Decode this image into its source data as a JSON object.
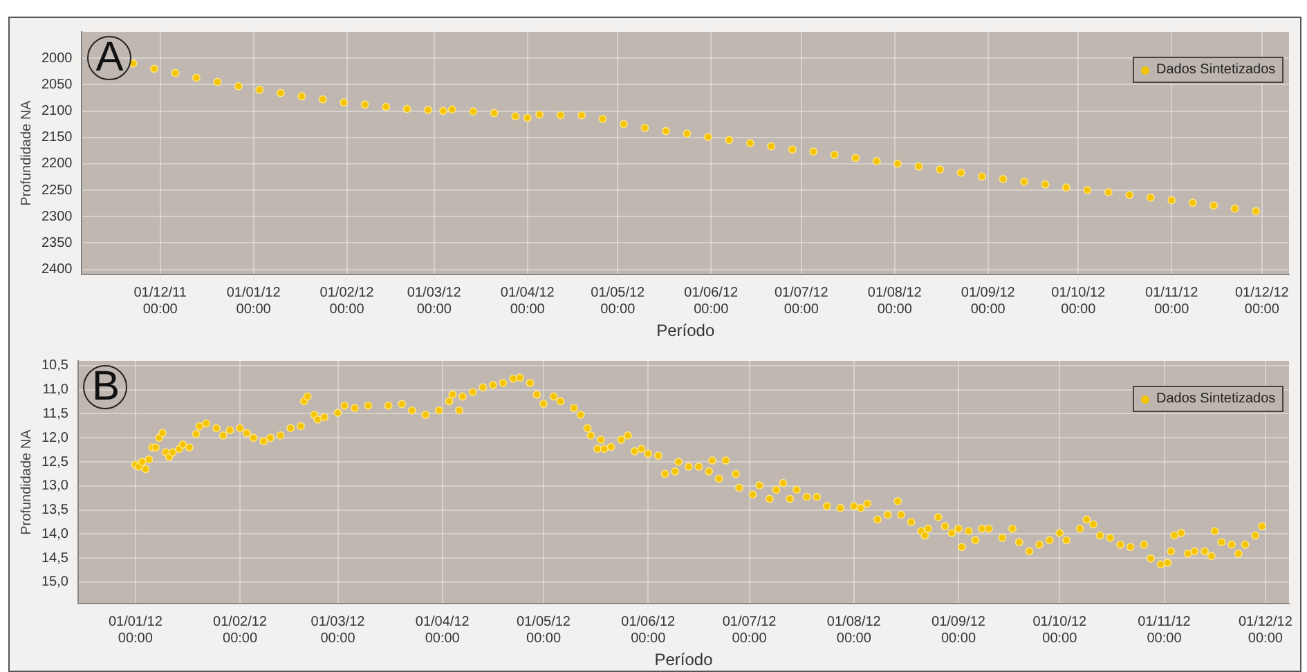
{
  "chart_data": [
    {
      "type": "scatter",
      "xlabel": "Período",
      "ylabel": "Profundidade NA",
      "annotations": [
        "A"
      ],
      "legend": "top right",
      "grid": true,
      "marker": "circle",
      "xlim": [
        "2011-11-05",
        "2012-12-10"
      ],
      "ylim": [
        2410,
        1950
      ],
      "yticks": [
        2000,
        2050,
        2100,
        2150,
        2200,
        2250,
        2300,
        2350,
        2400
      ],
      "xticks": [
        {
          "value": "2011-12-01",
          "label": "01/12/11 00:00"
        },
        {
          "value": "2012-01-01",
          "label": "01/01/12 00:00"
        },
        {
          "value": "2012-02-01",
          "label": "01/02/12 00:00"
        },
        {
          "value": "2012-03-01",
          "label": "01/03/12 00:00"
        },
        {
          "value": "2012-04-01",
          "label": "01/04/12 00:00"
        },
        {
          "value": "2012-05-01",
          "label": "01/05/12 00:00"
        },
        {
          "value": "2012-06-01",
          "label": "01/06/12 00:00"
        },
        {
          "value": "2012-07-01",
          "label": "01/07/12 00:00"
        },
        {
          "value": "2012-08-01",
          "label": "01/08/12 00:00"
        },
        {
          "value": "2012-09-01",
          "label": "01/09/12 00:00"
        },
        {
          "value": "2012-10-01",
          "label": "01/10/12 00:00"
        },
        {
          "value": "2012-11-01",
          "label": "01/11/12 00:00"
        },
        {
          "value": "2012-12-01",
          "label": "01/12/12 00:00"
        }
      ],
      "series": [
        {
          "name": "Dados Sintetizados",
          "color": "#f5c400",
          "x": [
            "2011-11-22",
            "2011-11-29",
            "2011-12-06",
            "2011-12-13",
            "2011-12-20",
            "2011-12-27",
            "2012-01-03",
            "2012-01-10",
            "2012-01-17",
            "2012-01-24",
            "2012-01-31",
            "2012-02-07",
            "2012-02-14",
            "2012-02-21",
            "2012-02-28",
            "2012-03-04",
            "2012-03-07",
            "2012-03-14",
            "2012-03-21",
            "2012-03-28",
            "2012-04-01",
            "2012-04-05",
            "2012-04-12",
            "2012-04-19",
            "2012-04-26",
            "2012-05-03",
            "2012-05-10",
            "2012-05-17",
            "2012-05-24",
            "2012-05-31",
            "2012-06-07",
            "2012-06-14",
            "2012-06-21",
            "2012-06-28",
            "2012-07-05",
            "2012-07-12",
            "2012-07-19",
            "2012-07-26",
            "2012-08-02",
            "2012-08-09",
            "2012-08-16",
            "2012-08-23",
            "2012-08-30",
            "2012-09-06",
            "2012-09-13",
            "2012-09-20",
            "2012-09-27",
            "2012-10-04",
            "2012-10-11",
            "2012-10-18",
            "2012-10-25",
            "2012-11-01",
            "2012-11-08",
            "2012-11-15",
            "2012-11-22",
            "2012-11-29"
          ],
          "values": [
            2010,
            2020,
            2028,
            2037,
            2045,
            2053,
            2060,
            2066,
            2072,
            2078,
            2084,
            2088,
            2092,
            2096,
            2098,
            2100,
            2097,
            2101,
            2104,
            2110,
            2113,
            2107,
            2108,
            2108,
            2115,
            2125,
            2132,
            2138,
            2143,
            2149,
            2155,
            2161,
            2167,
            2173,
            2177,
            2183,
            2189,
            2195,
            2200,
            2205,
            2211,
            2217,
            2224,
            2229,
            2234,
            2239,
            2245,
            2250,
            2254,
            2259,
            2264,
            2269,
            2274,
            2279,
            2285,
            2290
          ]
        }
      ]
    },
    {
      "type": "scatter",
      "xlabel": "Período",
      "ylabel": "Profundidade NA",
      "annotations": [
        "B"
      ],
      "legend": "top right",
      "grid": true,
      "marker": "circle",
      "xlim": [
        "2011-12-15",
        "2012-12-08"
      ],
      "ylim": [
        15.45,
        10.4
      ],
      "yticks": [
        {
          "value": 10.5,
          "label": "10,5"
        },
        {
          "value": 11,
          "label": "11,0"
        },
        {
          "value": 11.5,
          "label": "11,5"
        },
        {
          "value": 12,
          "label": "12,0"
        },
        {
          "value": 12.5,
          "label": "12,5"
        },
        {
          "value": 13,
          "label": "13,0"
        },
        {
          "value": 13.5,
          "label": "13,5"
        },
        {
          "value": 14,
          "label": "14,0"
        },
        {
          "value": 14.5,
          "label": "14,5"
        },
        {
          "value": 15,
          "label": "15,0"
        }
      ],
      "xticks": [
        {
          "value": "2012-01-01",
          "label": "01/01/12 00:00"
        },
        {
          "value": "2012-02-01",
          "label": "01/02/12 00:00"
        },
        {
          "value": "2012-03-01",
          "label": "01/03/12 00:00"
        },
        {
          "value": "2012-04-01",
          "label": "01/04/12 00:00"
        },
        {
          "value": "2012-05-01",
          "label": "01/05/12 00:00"
        },
        {
          "value": "2012-06-01",
          "label": "01/06/12 00:00"
        },
        {
          "value": "2012-07-01",
          "label": "01/07/12 00:00"
        },
        {
          "value": "2012-08-01",
          "label": "01/08/12 00:00"
        },
        {
          "value": "2012-09-01",
          "label": "01/09/12 00:00"
        },
        {
          "value": "2012-10-01",
          "label": "01/10/12 00:00"
        },
        {
          "value": "2012-11-01",
          "label": "01/11/12 00:00"
        },
        {
          "value": "2012-12-01",
          "label": "01/12/12 00:00"
        }
      ],
      "series": [
        {
          "name": "Dados Sintetizados",
          "color": "#f5c400",
          "x": [
            "2012-01-01",
            "2012-01-02",
            "2012-01-03",
            "2012-01-04",
            "2012-01-05",
            "2012-01-06",
            "2012-01-07",
            "2012-01-08",
            "2012-01-09",
            "2012-01-10",
            "2012-01-11",
            "2012-01-12",
            "2012-01-14",
            "2012-01-15",
            "2012-01-17",
            "2012-01-19",
            "2012-01-20",
            "2012-01-22",
            "2012-01-25",
            "2012-01-27",
            "2012-01-29",
            "2012-02-01",
            "2012-02-03",
            "2012-02-05",
            "2012-02-08",
            "2012-02-10",
            "2012-02-13",
            "2012-02-16",
            "2012-02-19",
            "2012-02-20",
            "2012-02-21",
            "2012-02-23",
            "2012-02-24",
            "2012-02-26",
            "2012-03-01",
            "2012-03-03",
            "2012-03-06",
            "2012-03-10",
            "2012-03-16",
            "2012-03-20",
            "2012-03-23",
            "2012-03-27",
            "2012-03-31",
            "2012-04-03",
            "2012-04-04",
            "2012-04-06",
            "2012-04-07",
            "2012-04-10",
            "2012-04-13",
            "2012-04-16",
            "2012-04-19",
            "2012-04-22",
            "2012-04-24",
            "2012-04-27",
            "2012-04-29",
            "2012-05-01",
            "2012-05-04",
            "2012-05-06",
            "2012-05-10",
            "2012-05-12",
            "2012-05-14",
            "2012-05-15",
            "2012-05-17",
            "2012-05-18",
            "2012-05-19",
            "2012-05-21",
            "2012-05-24",
            "2012-05-26",
            "2012-05-28",
            "2012-05-30",
            "2012-06-01",
            "2012-06-04",
            "2012-06-06",
            "2012-06-09",
            "2012-06-10",
            "2012-06-13",
            "2012-06-16",
            "2012-06-19",
            "2012-06-20",
            "2012-06-22",
            "2012-06-24",
            "2012-06-27",
            "2012-06-28",
            "2012-07-02",
            "2012-07-04",
            "2012-07-07",
            "2012-07-09",
            "2012-07-11",
            "2012-07-13",
            "2012-07-15",
            "2012-07-18",
            "2012-07-21",
            "2012-07-24",
            "2012-07-28",
            "2012-08-01",
            "2012-08-03",
            "2012-08-05",
            "2012-08-08",
            "2012-08-11",
            "2012-08-14",
            "2012-08-15",
            "2012-08-18",
            "2012-08-21",
            "2012-08-22",
            "2012-08-23",
            "2012-08-26",
            "2012-08-28",
            "2012-08-30",
            "2012-09-01",
            "2012-09-02",
            "2012-09-04",
            "2012-09-06",
            "2012-09-08",
            "2012-09-10",
            "2012-09-14",
            "2012-09-17",
            "2012-09-19",
            "2012-09-22",
            "2012-09-25",
            "2012-09-28",
            "2012-10-01",
            "2012-10-03",
            "2012-10-07",
            "2012-10-09",
            "2012-10-11",
            "2012-10-13",
            "2012-10-16",
            "2012-10-19",
            "2012-10-22",
            "2012-10-26",
            "2012-10-28",
            "2012-10-31",
            "2012-11-02",
            "2012-11-03",
            "2012-11-04",
            "2012-11-06",
            "2012-11-08",
            "2012-11-10",
            "2012-11-13",
            "2012-11-15",
            "2012-11-16",
            "2012-11-18",
            "2012-11-21",
            "2012-11-23",
            "2012-11-25",
            "2012-11-28",
            "2012-11-30"
          ],
          "values": [
            12.56,
            12.6,
            12.5,
            12.65,
            12.45,
            12.2,
            12.2,
            12.0,
            11.9,
            12.3,
            12.4,
            12.3,
            12.23,
            12.14,
            12.2,
            11.92,
            11.76,
            11.7,
            11.8,
            11.95,
            11.84,
            11.8,
            11.9,
            12.0,
            12.07,
            12.0,
            11.95,
            11.8,
            11.76,
            11.24,
            11.14,
            11.52,
            11.62,
            11.57,
            11.48,
            11.33,
            11.38,
            11.33,
            11.33,
            11.3,
            11.43,
            11.52,
            11.43,
            11.24,
            11.1,
            11.43,
            11.14,
            11.05,
            10.95,
            10.9,
            10.86,
            10.77,
            10.75,
            10.86,
            11.1,
            11.29,
            11.14,
            11.24,
            11.38,
            11.52,
            11.8,
            11.95,
            12.23,
            12.04,
            12.23,
            12.19,
            12.04,
            11.95,
            12.28,
            12.23,
            12.33,
            12.37,
            12.75,
            12.7,
            12.5,
            12.6,
            12.6,
            12.7,
            12.47,
            12.85,
            12.47,
            12.75,
            13.04,
            13.18,
            12.99,
            13.27,
            13.08,
            12.94,
            13.27,
            13.08,
            13.23,
            13.23,
            13.42,
            13.46,
            13.42,
            13.46,
            13.37,
            13.7,
            13.6,
            13.32,
            13.6,
            13.75,
            13.94,
            14.03,
            13.89,
            13.65,
            13.84,
            13.98,
            13.89,
            14.27,
            13.94,
            14.13,
            13.89,
            13.89,
            14.08,
            13.89,
            14.17,
            14.36,
            14.22,
            14.13,
            13.98,
            14.13,
            13.89,
            13.7,
            13.8,
            14.03,
            14.08,
            14.22,
            14.27,
            14.22,
            14.51,
            14.63,
            14.6,
            14.36,
            14.03,
            13.98,
            14.41,
            14.36,
            14.36,
            14.46,
            13.94,
            14.17,
            14.22,
            14.41,
            14.22,
            14.03,
            13.84
          ]
        }
      ]
    }
  ]
}
